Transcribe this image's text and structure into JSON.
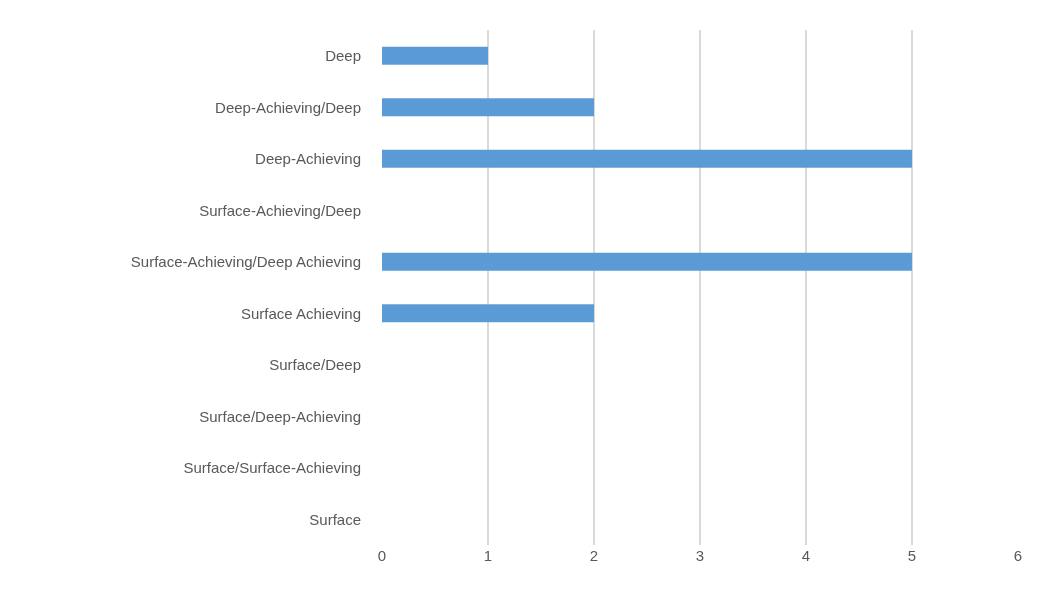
{
  "chart_data": {
    "type": "bar",
    "orientation": "horizontal",
    "categories": [
      "Deep",
      "Deep-Achieving/Deep",
      "Deep-Achieving",
      "Surface-Achieving/Deep",
      "Surface-Achieving/Deep Achieving",
      "Surface Achieving",
      "Surface/Deep",
      "Surface/Deep-Achieving",
      "Surface/Surface-Achieving",
      "Surface"
    ],
    "values": [
      1,
      2,
      5,
      0,
      5,
      2,
      0,
      0,
      0,
      0
    ],
    "color": "#5b9bd5",
    "xlim": [
      0,
      6
    ],
    "xticks": [
      0,
      1,
      2,
      3,
      4,
      5,
      6
    ],
    "grid": "x",
    "legend": false
  }
}
